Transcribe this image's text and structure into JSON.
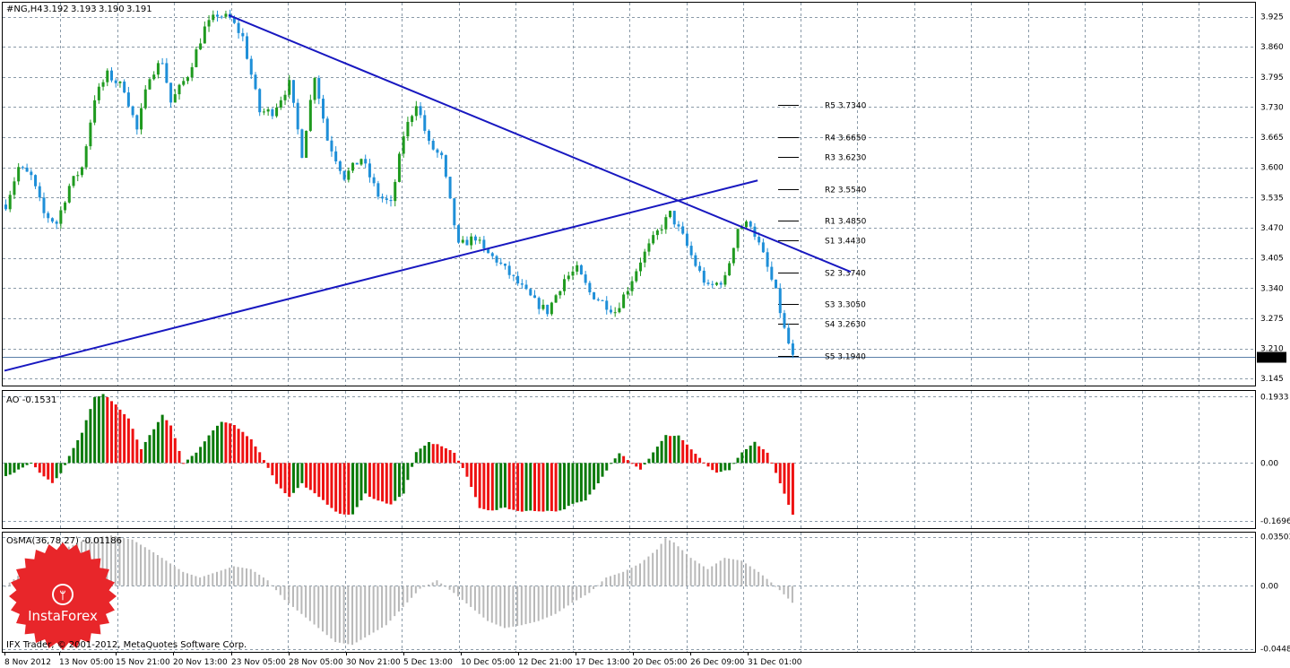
{
  "header": {
    "symbol": "#NG,H4",
    "open": "3.192",
    "high": "3.193",
    "low": "3.190",
    "close": "3.191"
  },
  "copyright": "IFX Trader, © 2001-2012, MetaQuotes Software Corp.",
  "logo_text": "InstaForex",
  "colors": {
    "bull": "#1f9a1f",
    "bear": "#1e8fd8",
    "trend": "#1818c0",
    "ao_up": "#0a7a0a",
    "ao_down": "#ee1111",
    "osma": "#b8b8b8",
    "grid": "#8a9aa8",
    "frame": "#000000",
    "logo": "#e8262a"
  },
  "chart_data": [
    {
      "type": "candlestick",
      "name": "price",
      "y_ticks": [
        "3.925",
        "3.860",
        "3.795",
        "3.730",
        "3.665",
        "3.600",
        "3.535",
        "3.470",
        "3.405",
        "3.340",
        "3.275",
        "3.210",
        "3.145"
      ],
      "ylim": [
        3.13,
        3.955
      ],
      "current_price": "3.191",
      "x_ticks": [
        "8 Nov 2012",
        "13 Nov 05:00",
        "15 Nov 21:00",
        "20 Nov 13:00",
        "23 Nov 05:00",
        "28 Nov 05:00",
        "30 Nov 21:00",
        "5 Dec 13:00",
        "10 Dec 05:00",
        "12 Dec 21:00",
        "17 Dec 13:00",
        "20 Dec 05:00",
        "26 Dec 09:00",
        "31 Dec 01:00"
      ],
      "bar_count": 187,
      "path": [
        [
          0,
          3.52
        ],
        [
          3,
          3.6
        ],
        [
          6,
          3.58
        ],
        [
          9,
          3.5
        ],
        [
          12,
          3.48
        ],
        [
          15,
          3.56
        ],
        [
          18,
          3.6
        ],
        [
          21,
          3.75
        ],
        [
          24,
          3.8
        ],
        [
          28,
          3.77
        ],
        [
          31,
          3.68
        ],
        [
          34,
          3.8
        ],
        [
          37,
          3.83
        ],
        [
          39,
          3.74
        ],
        [
          43,
          3.8
        ],
        [
          47,
          3.9
        ],
        [
          50,
          3.93
        ],
        [
          53,
          3.92
        ],
        [
          56,
          3.88
        ],
        [
          60,
          3.72
        ],
        [
          63,
          3.72
        ],
        [
          67,
          3.78
        ],
        [
          70,
          3.63
        ],
        [
          73,
          3.8
        ],
        [
          76,
          3.66
        ],
        [
          80,
          3.58
        ],
        [
          84,
          3.62
        ],
        [
          88,
          3.54
        ],
        [
          91,
          3.52
        ],
        [
          94,
          3.67
        ],
        [
          97,
          3.74
        ],
        [
          100,
          3.65
        ],
        [
          103,
          3.62
        ],
        [
          107,
          3.43
        ],
        [
          111,
          3.45
        ],
        [
          113,
          3.42
        ],
        [
          116,
          3.4
        ],
        [
          119,
          3.37
        ],
        [
          122,
          3.34
        ],
        [
          125,
          3.31
        ],
        [
          128,
          3.29
        ],
        [
          132,
          3.36
        ],
        [
          135,
          3.38
        ],
        [
          138,
          3.33
        ],
        [
          141,
          3.31
        ],
        [
          144,
          3.29
        ],
        [
          147,
          3.34
        ],
        [
          150,
          3.4
        ],
        [
          154,
          3.46
        ],
        [
          157,
          3.5
        ],
        [
          160,
          3.45
        ],
        [
          163,
          3.39
        ],
        [
          166,
          3.34
        ],
        [
          170,
          3.36
        ],
        [
          173,
          3.47
        ],
        [
          176,
          3.48
        ],
        [
          179,
          3.41
        ],
        [
          182,
          3.33
        ],
        [
          184,
          3.25
        ],
        [
          186,
          3.19
        ]
      ],
      "trendlines": [
        {
          "from": [
            53,
            3.928
          ],
          "to": [
            200,
            3.375
          ]
        },
        {
          "from": [
            0,
            3.162
          ],
          "to": [
            178,
            3.572
          ]
        }
      ],
      "pivot_levels": [
        {
          "label": "R5",
          "value": "3.7340",
          "price": 3.734
        },
        {
          "label": "R4",
          "value": "3.6650",
          "price": 3.665
        },
        {
          "label": "R3",
          "value": "3.6230",
          "price": 3.623
        },
        {
          "label": "R2",
          "value": "3.5540",
          "price": 3.554
        },
        {
          "label": "R1",
          "value": "3.4850",
          "price": 3.485
        },
        {
          "label": "S1",
          "value": "3.4430",
          "price": 3.443
        },
        {
          "label": "S2",
          "value": "3.3740",
          "price": 3.374
        },
        {
          "label": "S3",
          "value": "3.3050",
          "price": 3.305
        },
        {
          "label": "S4",
          "value": "3.2630",
          "price": 3.263
        },
        {
          "label": "S5",
          "value": "3.1940",
          "price": 3.194
        }
      ]
    },
    {
      "type": "bar",
      "name": "AO",
      "value_label": "-0.1531",
      "y_ticks": [
        "0.1933",
        "0.00",
        "-0.1696"
      ],
      "ylim": [
        -0.19,
        0.21
      ],
      "path": [
        [
          0,
          -0.04
        ],
        [
          3,
          -0.02
        ],
        [
          6,
          0.0
        ],
        [
          9,
          -0.04
        ],
        [
          11,
          -0.06
        ],
        [
          13,
          -0.03
        ],
        [
          15,
          0.02
        ],
        [
          18,
          0.09
        ],
        [
          21,
          0.19
        ],
        [
          23,
          0.2
        ],
        [
          26,
          0.17
        ],
        [
          29,
          0.13
        ],
        [
          32,
          0.04
        ],
        [
          34,
          0.08
        ],
        [
          37,
          0.14
        ],
        [
          39,
          0.11
        ],
        [
          42,
          0.0
        ],
        [
          45,
          0.03
        ],
        [
          48,
          0.08
        ],
        [
          51,
          0.12
        ],
        [
          54,
          0.11
        ],
        [
          58,
          0.07
        ],
        [
          61,
          0.01
        ],
        [
          64,
          -0.06
        ],
        [
          67,
          -0.1
        ],
        [
          70,
          -0.06
        ],
        [
          73,
          -0.09
        ],
        [
          76,
          -0.12
        ],
        [
          79,
          -0.15
        ],
        [
          82,
          -0.15
        ],
        [
          85,
          -0.09
        ],
        [
          88,
          -0.11
        ],
        [
          91,
          -0.12
        ],
        [
          94,
          -0.09
        ],
        [
          97,
          0.03
        ],
        [
          100,
          0.06
        ],
        [
          103,
          0.05
        ],
        [
          106,
          0.03
        ],
        [
          109,
          -0.04
        ],
        [
          112,
          -0.13
        ],
        [
          115,
          -0.14
        ],
        [
          118,
          -0.13
        ],
        [
          121,
          -0.14
        ],
        [
          124,
          -0.14
        ],
        [
          127,
          -0.14
        ],
        [
          131,
          -0.14
        ],
        [
          134,
          -0.12
        ],
        [
          137,
          -0.11
        ],
        [
          140,
          -0.06
        ],
        [
          143,
          0.0
        ],
        [
          145,
          0.03
        ],
        [
          148,
          0.0
        ],
        [
          150,
          -0.02
        ],
        [
          153,
          0.03
        ],
        [
          156,
          0.08
        ],
        [
          159,
          0.08
        ],
        [
          162,
          0.04
        ],
        [
          165,
          0.0
        ],
        [
          168,
          -0.03
        ],
        [
          171,
          -0.02
        ],
        [
          174,
          0.03
        ],
        [
          177,
          0.06
        ],
        [
          180,
          0.03
        ],
        [
          183,
          -0.06
        ],
        [
          186,
          -0.15
        ]
      ]
    },
    {
      "type": "histogram",
      "name": "OsMA",
      "value_label": "OsMA(36,78,27) -0.01186",
      "y_ticks": [
        "0.03503",
        "0.00",
        "-0.04481"
      ],
      "ylim": [
        -0.047,
        0.038
      ],
      "path": [
        [
          0,
          0.0
        ],
        [
          5,
          0.012
        ],
        [
          10,
          0.022
        ],
        [
          15,
          0.028
        ],
        [
          20,
          0.034
        ],
        [
          25,
          0.036
        ],
        [
          30,
          0.033
        ],
        [
          35,
          0.024
        ],
        [
          38,
          0.018
        ],
        [
          42,
          0.01
        ],
        [
          46,
          0.006
        ],
        [
          50,
          0.01
        ],
        [
          54,
          0.014
        ],
        [
          58,
          0.012
        ],
        [
          62,
          0.004
        ],
        [
          66,
          -0.01
        ],
        [
          70,
          -0.02
        ],
        [
          74,
          -0.03
        ],
        [
          78,
          -0.04
        ],
        [
          82,
          -0.042
        ],
        [
          86,
          -0.035
        ],
        [
          90,
          -0.028
        ],
        [
          94,
          -0.015
        ],
        [
          98,
          -0.002
        ],
        [
          102,
          0.004
        ],
        [
          106,
          -0.005
        ],
        [
          110,
          -0.015
        ],
        [
          114,
          -0.025
        ],
        [
          118,
          -0.03
        ],
        [
          122,
          -0.028
        ],
        [
          126,
          -0.025
        ],
        [
          130,
          -0.02
        ],
        [
          134,
          -0.012
        ],
        [
          138,
          -0.005
        ],
        [
          142,
          0.006
        ],
        [
          146,
          0.01
        ],
        [
          150,
          0.016
        ],
        [
          154,
          0.026
        ],
        [
          156,
          0.034
        ],
        [
          158,
          0.031
        ],
        [
          162,
          0.02
        ],
        [
          166,
          0.012
        ],
        [
          170,
          0.02
        ],
        [
          174,
          0.018
        ],
        [
          178,
          0.01
        ],
        [
          182,
          0.0
        ],
        [
          186,
          -0.012
        ]
      ]
    }
  ]
}
